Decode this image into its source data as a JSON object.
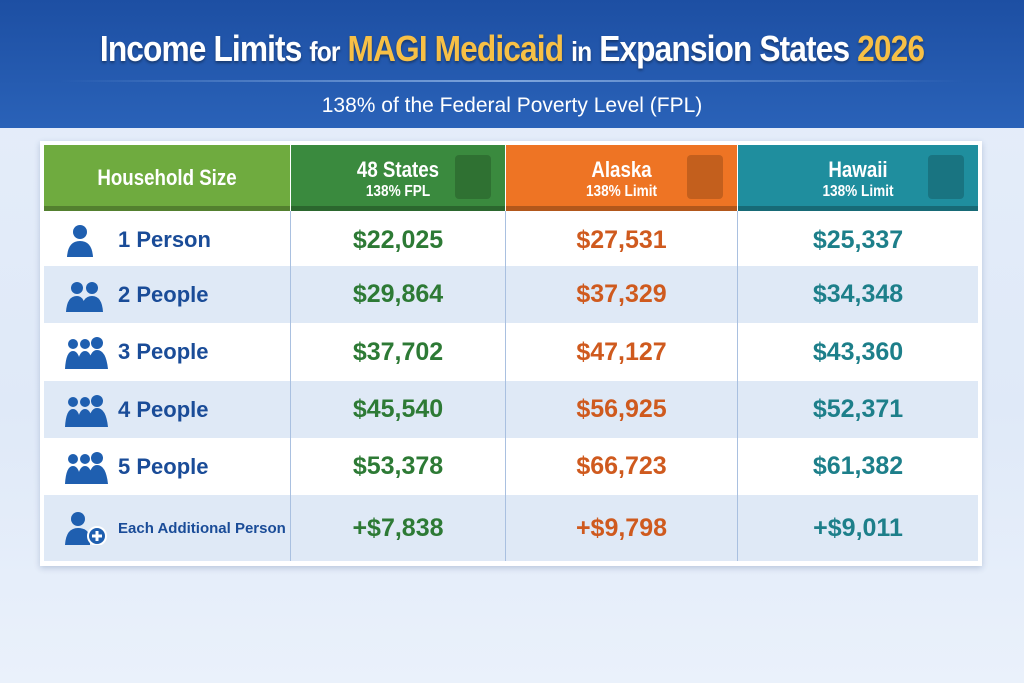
{
  "header": {
    "title_part1": "Income Limits",
    "title_part2": "for",
    "title_part3": "MAGI Medicaid",
    "title_part4": "in",
    "title_part5": "Expansion States",
    "title_part6": "2026",
    "subtitle": "138% of the Federal Poverty Level (FPL)"
  },
  "colors": {
    "banner": "#1d4fa3",
    "highlight": "#f7c046",
    "household_header": "#6fab3f",
    "states48": "#3a8a3e",
    "alaska": "#ee7424",
    "hawaii": "#1f8e9e"
  },
  "table": {
    "columns": [
      {
        "title": "Household Size"
      },
      {
        "title": "48 States",
        "sub": "138% FPL",
        "icon": "us-map-icon"
      },
      {
        "title": "Alaska",
        "sub": "138% Limit",
        "icon": "alaska-map-icon"
      },
      {
        "title": "Hawaii",
        "sub": "138% Limit",
        "icon": "hawaii-map-icon"
      }
    ],
    "rows": [
      {
        "label": "1 Person",
        "icon": "person-icon",
        "v": [
          "$22,025",
          "$27,531",
          "$25,337"
        ]
      },
      {
        "label": "2 People",
        "icon": "two-people-icon",
        "v": [
          "$29,864",
          "$37,329",
          "$34,348"
        ]
      },
      {
        "label": "3 People",
        "icon": "three-people-icon",
        "v": [
          "$37,702",
          "$47,127",
          "$43,360"
        ]
      },
      {
        "label": "4 People",
        "icon": "group-icon",
        "v": [
          "$45,540",
          "$56,925",
          "$52,371"
        ]
      },
      {
        "label": "5 People",
        "icon": "group-icon",
        "v": [
          "$53,378",
          "$66,723",
          "$61,382"
        ]
      },
      {
        "label": "Each Additional Person",
        "icon": "person-add-icon",
        "v": [
          "+$7,838",
          "+$9,798",
          "+$9,011"
        ]
      }
    ]
  }
}
